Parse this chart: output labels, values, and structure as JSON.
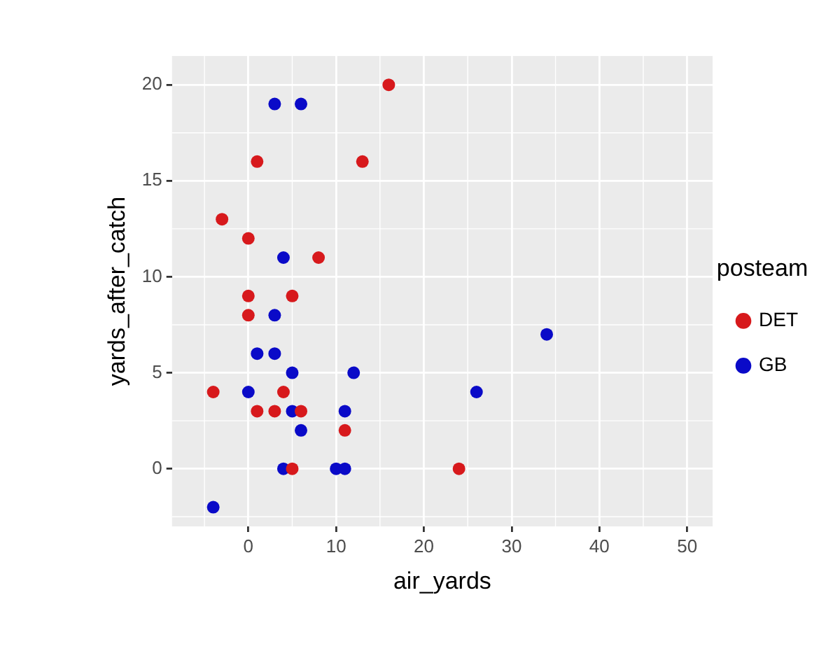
{
  "chart_data": {
    "type": "scatter",
    "xlabel": "air_yards",
    "ylabel": "yards_after_catch",
    "legend_title": "posteam",
    "legend": "right",
    "grid": true,
    "marker": "circle",
    "xlim": [
      -8.7,
      52.9
    ],
    "xticks": [
      0,
      10,
      20,
      30,
      40,
      50
    ],
    "ylim": [
      -3,
      21.5
    ],
    "yticks": [
      0,
      5,
      10,
      15,
      20
    ],
    "series": [
      {
        "name": "DET",
        "color": "#d7191c",
        "x": [
          16,
          1,
          13,
          -3,
          0,
          8,
          0,
          5,
          0,
          -4,
          4,
          1,
          3,
          6,
          11,
          5,
          24
        ],
        "values": [
          20,
          16,
          16,
          13,
          12,
          11,
          9,
          9,
          8,
          4,
          4,
          3,
          3,
          3,
          2,
          0,
          0
        ]
      },
      {
        "name": "GB",
        "color": "#0a0ac8",
        "x": [
          3,
          6,
          4,
          3,
          1,
          3,
          5,
          12,
          0,
          26,
          34,
          5,
          11,
          6,
          4,
          10,
          11,
          -4
        ],
        "values": [
          19,
          19,
          11,
          8,
          6,
          6,
          5,
          5,
          4,
          4,
          7,
          3,
          3,
          2,
          0,
          0,
          0,
          -2
        ]
      }
    ]
  }
}
